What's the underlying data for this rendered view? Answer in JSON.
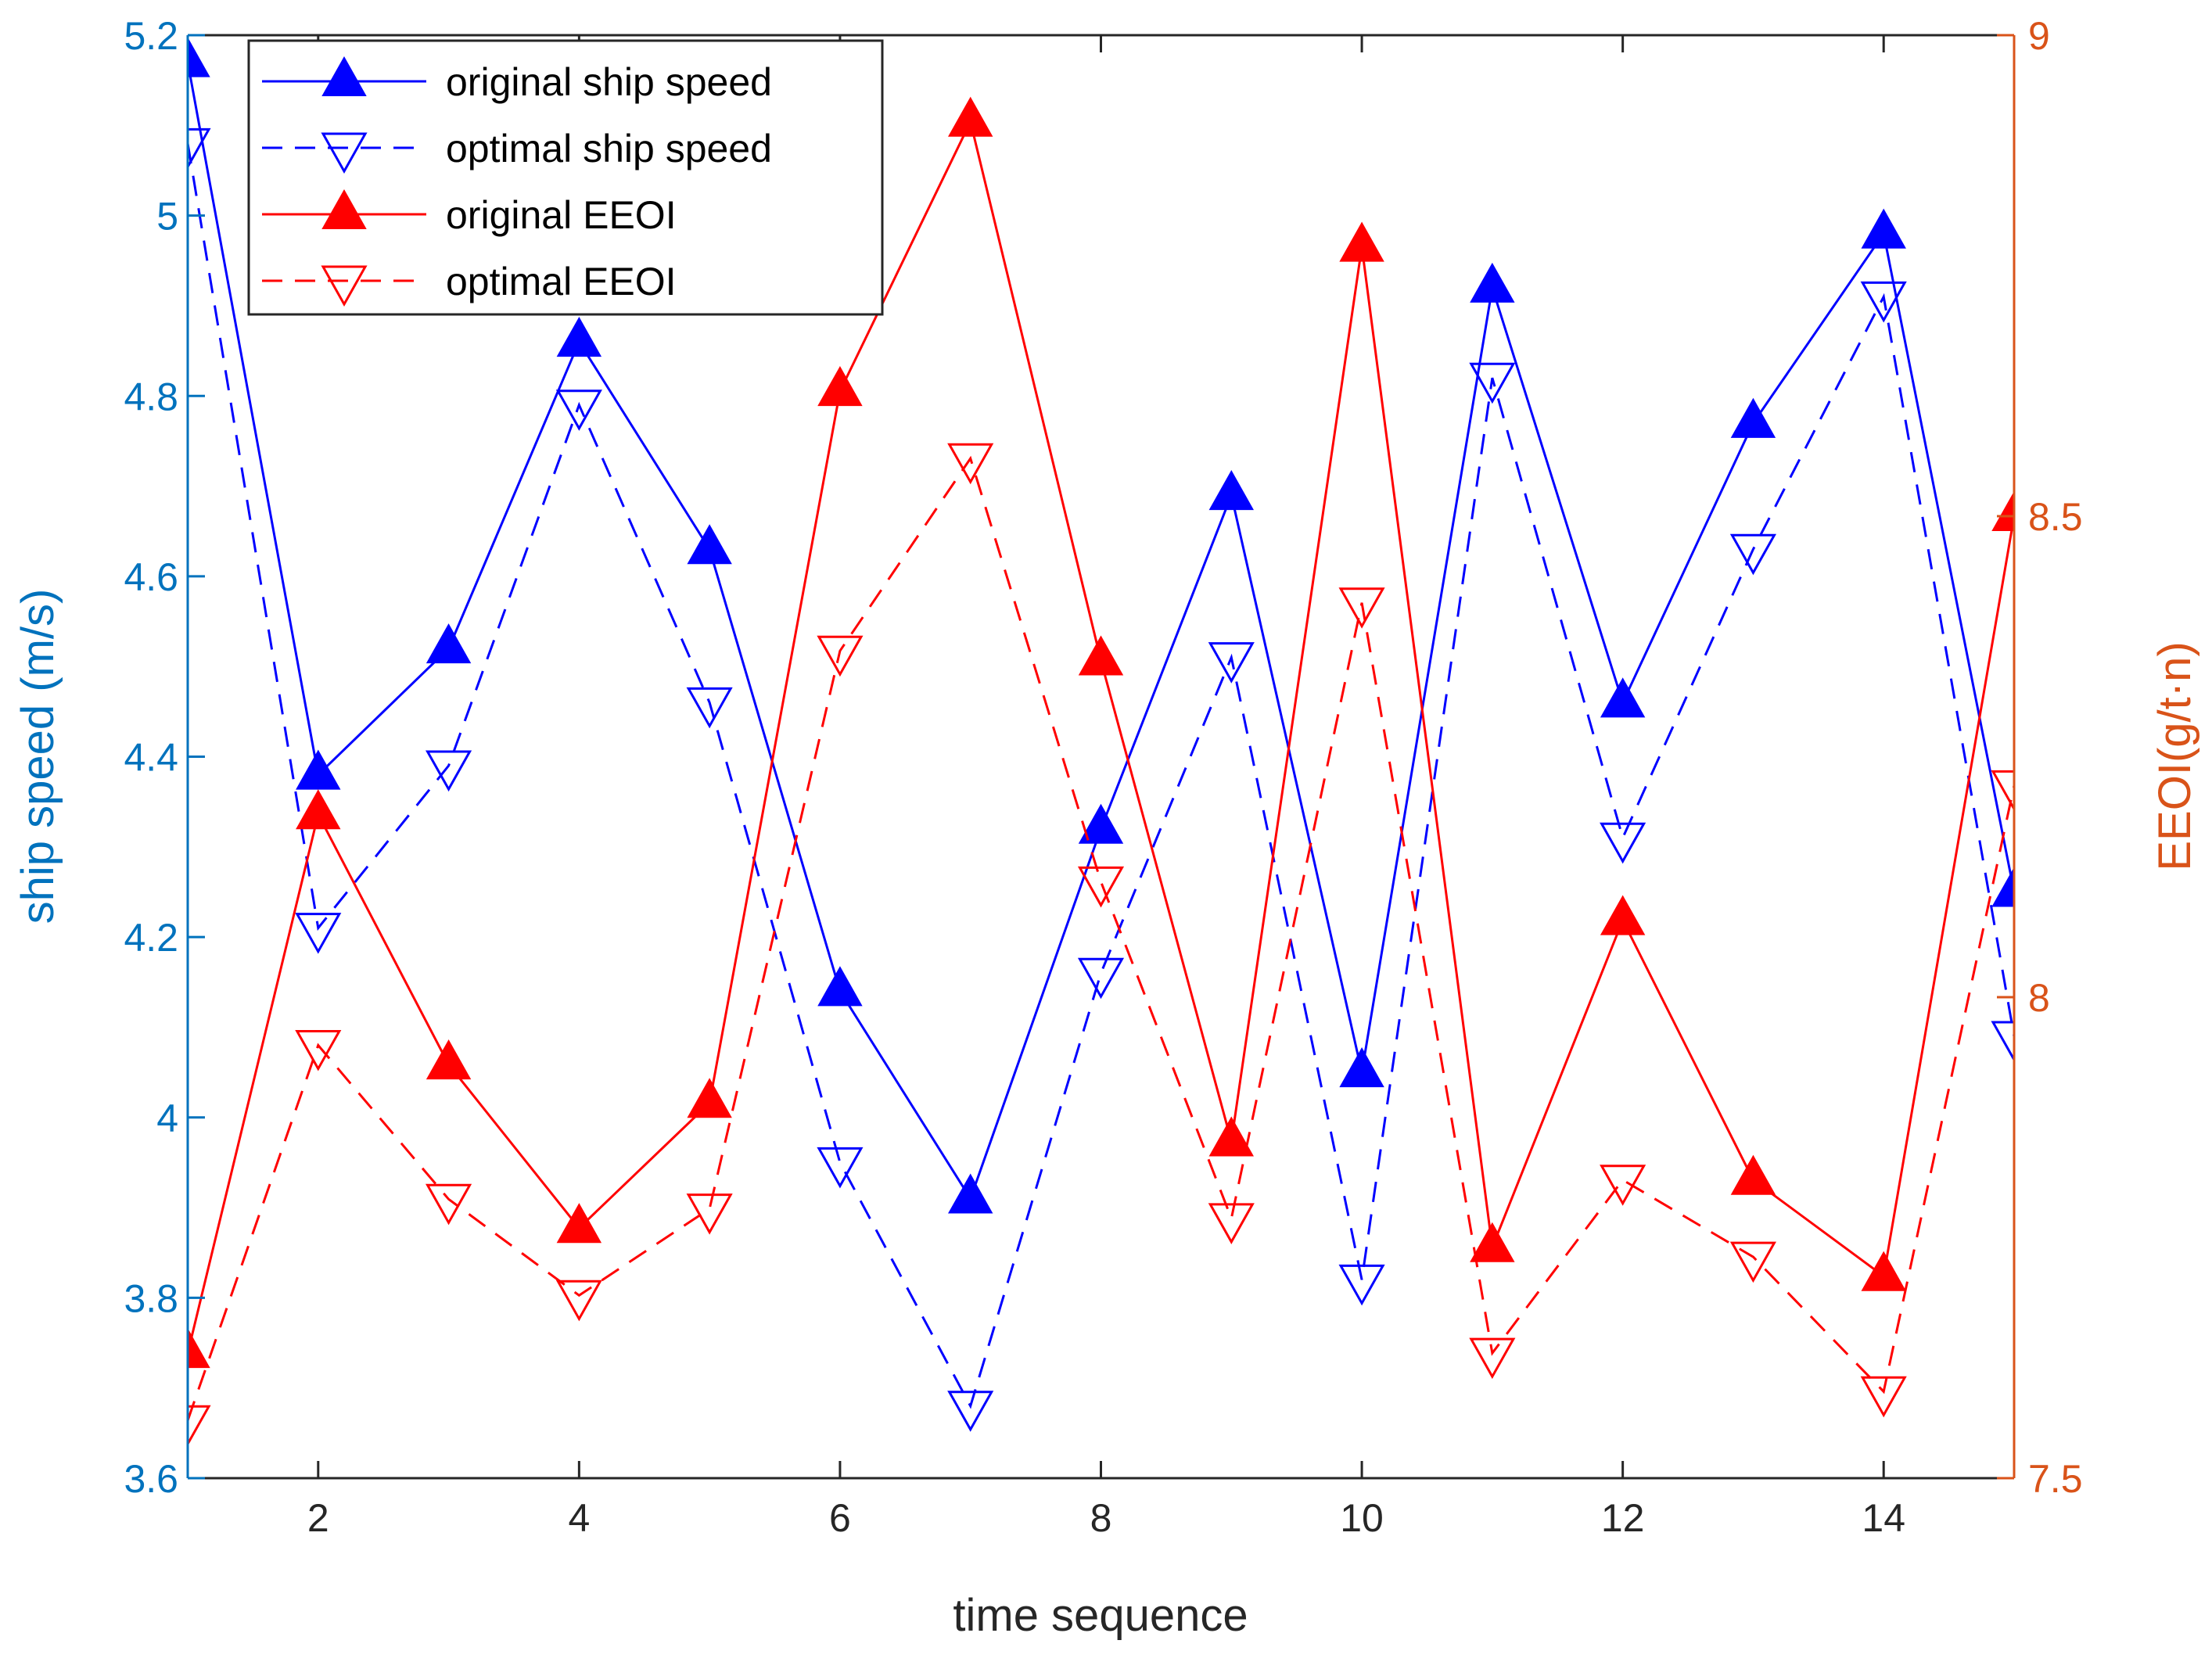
{
  "chart_data": {
    "type": "line",
    "title": "",
    "xlabel": "time sequence",
    "ylabel_left": "ship speed (m/s)",
    "ylabel_right": "EEOI(g/t·n)",
    "xlim": [
      1,
      15
    ],
    "ylim_left": [
      3.6,
      5.2
    ],
    "ylim_right": [
      7.5,
      9
    ],
    "x_ticks": [
      2,
      4,
      6,
      8,
      10,
      12,
      14
    ],
    "y_ticks_left": [
      3.6,
      3.8,
      4,
      4.2,
      4.4,
      4.6,
      4.8,
      5,
      5.2
    ],
    "y_ticks_right": [
      7.5,
      8,
      8.5,
      9
    ],
    "x_tick_labels": [
      "2",
      "4",
      "6",
      "8",
      "10",
      "12",
      "14"
    ],
    "y_tick_labels_left": [
      "3.6",
      "3.8",
      "4",
      "4.2",
      "4.4",
      "4.6",
      "4.8",
      "5",
      "5.2"
    ],
    "y_tick_labels_right": [
      "7.5",
      "8",
      "8.5",
      "9"
    ],
    "grid": false,
    "legend_position": "top-left",
    "x": [
      1,
      2,
      3,
      4,
      5,
      6,
      7,
      8,
      9,
      10,
      11,
      12,
      13,
      14,
      15
    ],
    "series": [
      {
        "name": "original ship speed",
        "axis": "left",
        "color": "#0000FF",
        "line": "solid",
        "marker": "triangle-up-filled",
        "values": [
          5.17,
          4.38,
          4.52,
          4.86,
          4.63,
          4.14,
          3.91,
          4.32,
          4.69,
          4.05,
          4.92,
          4.46,
          4.77,
          4.98,
          4.25
        ]
      },
      {
        "name": "optimal ship speed",
        "axis": "left",
        "color": "#0000FF",
        "line": "dashed",
        "marker": "triangle-down-open",
        "values": [
          5.08,
          4.21,
          4.39,
          4.79,
          4.46,
          3.95,
          3.68,
          4.16,
          4.51,
          3.82,
          4.82,
          4.31,
          4.63,
          4.91,
          4.09
        ]
      },
      {
        "name": "original EEOI",
        "axis": "right",
        "color": "#FF0000",
        "line": "solid",
        "marker": "triangle-up-filled",
        "values": [
          7.63,
          8.19,
          7.93,
          7.76,
          7.89,
          8.63,
          8.91,
          8.35,
          7.85,
          8.78,
          7.74,
          8.08,
          7.81,
          7.71,
          8.5
        ]
      },
      {
        "name": "optimal EEOI",
        "axis": "right",
        "color": "#FF0000",
        "line": "dashed",
        "marker": "triangle-down-open",
        "values": [
          7.56,
          7.95,
          7.79,
          7.69,
          7.78,
          8.36,
          8.56,
          8.12,
          7.77,
          8.41,
          7.63,
          7.81,
          7.73,
          7.59,
          8.22
        ]
      }
    ]
  },
  "colors": {
    "left_axis": "#0072BD",
    "right_axis": "#D95319",
    "bottom_axis": "#262626"
  }
}
